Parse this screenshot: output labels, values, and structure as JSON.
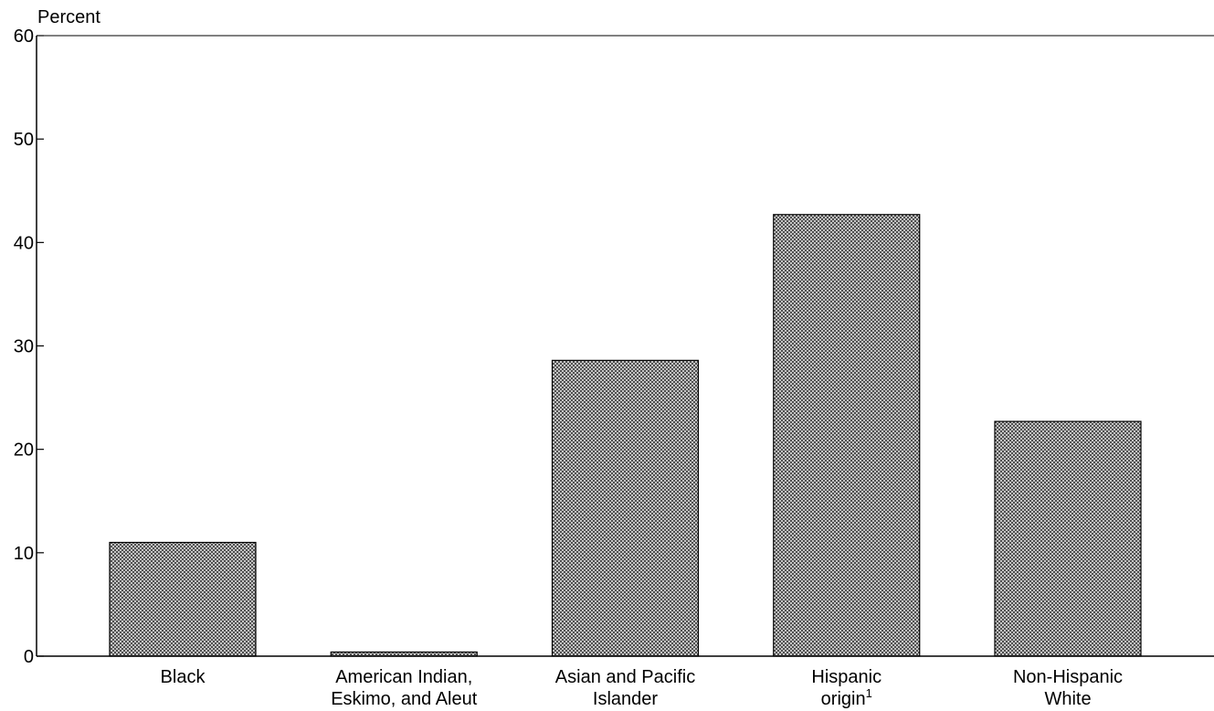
{
  "chart_data": {
    "type": "bar",
    "ylabel": "Percent",
    "ylim": [
      0,
      60
    ],
    "yticks": [
      0,
      10,
      20,
      30,
      40,
      50,
      60
    ],
    "categories": [
      {
        "lines": [
          "Black"
        ],
        "sup": ""
      },
      {
        "lines": [
          "American Indian,",
          "Eskimo, and Aleut"
        ],
        "sup": ""
      },
      {
        "lines": [
          "Asian and Pacific",
          "Islander"
        ],
        "sup": ""
      },
      {
        "lines": [
          "Hispanic",
          "origin"
        ],
        "sup": "1"
      },
      {
        "lines": [
          "Non-Hispanic",
          "White"
        ],
        "sup": ""
      }
    ],
    "values": [
      11.0,
      0.4,
      28.6,
      42.7,
      22.7
    ],
    "bar_fill": "#c8c8c8",
    "bar_stroke": "#000000",
    "grid": false
  }
}
